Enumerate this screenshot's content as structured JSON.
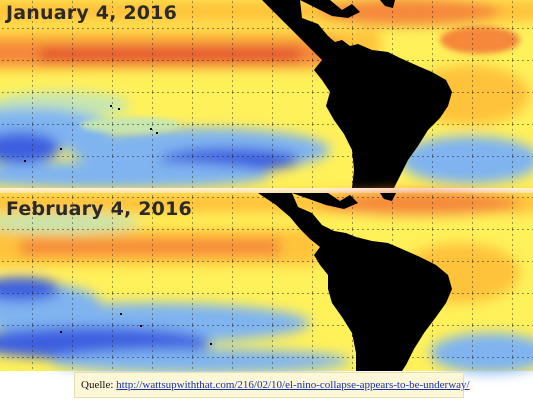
{
  "panels": [
    {
      "date_label": "January 4, 2016"
    },
    {
      "date_label": "February 4, 2016"
    }
  ],
  "colors": {
    "cold_deep": "#3c5ee0",
    "cold": "#7fb4f0",
    "cool": "#c6e6b0",
    "neutral": "#fff15a",
    "warm": "#ffc23a",
    "hot": "#f5883a",
    "very_hot": "#e2512e",
    "land": "#000000",
    "grid": "#222222"
  },
  "source": {
    "prefix": "Quelle: ",
    "url_text": "http://wattsupwiththat.com/216/02/10/el-nino-collapse-appears-to-be-underway/"
  }
}
